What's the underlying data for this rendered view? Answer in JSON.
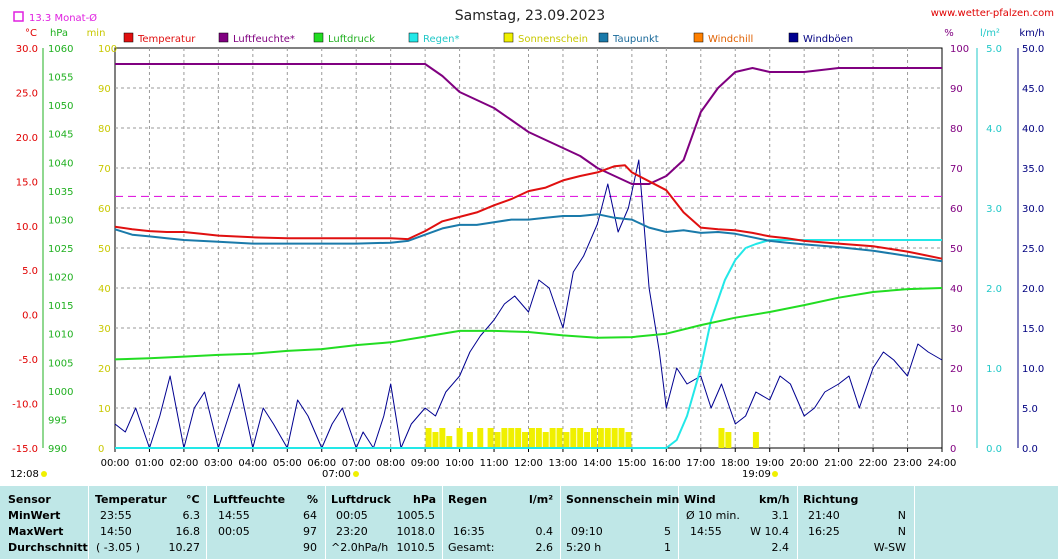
{
  "header": {
    "title": "Samstag, 23.09.2023",
    "site": "www.wetter-pfalzen.com",
    "monthly_avg_label": "13.3 Monat-Ø",
    "sunrise_time": "07:00",
    "sunset_time": "19:09",
    "start_time": "12:08"
  },
  "colors": {
    "temperature": "#e01010",
    "humidity": "#800080",
    "pressure": "#22dd22",
    "rain": "#22e8e8",
    "sunshine": "#f0f000",
    "dewpoint": "#1a7aaa",
    "windchill": "#ff8000",
    "gust": "#000090",
    "monthly_avg": "#e020e0"
  },
  "stats": {
    "headers": {
      "sensor": "Sensor",
      "temp": "Temperatur",
      "temp_unit": "°C",
      "hum": "Luftfeuchte",
      "hum_unit": "%",
      "pres": "Luftdruck",
      "pres_unit": "hPa",
      "rain": "Regen",
      "rain_unit": "l/m²",
      "sun": "Sonnenschein min",
      "wind": "Wind",
      "wind_unit": "km/h",
      "dir": "Richtung"
    },
    "rows": [
      {
        "label": "MinWert",
        "temp_time": "23:55",
        "temp_val": "6.3",
        "hum_time": "14:55",
        "hum_val": "64",
        "pres_time": "00:05",
        "pres_val": "1005.5",
        "rain_time": "",
        "rain_val": "",
        "sun_time": "",
        "sun_val": "",
        "wind_time": "Ø 10 min.",
        "wind_val": "3.1",
        "dir_time": "21:40",
        "dir_val": "N"
      },
      {
        "label": "MaxWert",
        "temp_time": "14:50",
        "temp_val": "16.8",
        "hum_time": "00:05",
        "hum_val": "97",
        "pres_time": "23:20",
        "pres_val": "1018.0",
        "rain_time": "16:35",
        "rain_val": "0.4",
        "sun_time": "09:10",
        "sun_val": "5",
        "wind_time": "14:55",
        "wind_val": "W 10.4",
        "dir_time": "16:25",
        "dir_val": "N"
      },
      {
        "label": "Durchschnitt",
        "temp_time": "( -3.05 )",
        "temp_val": "10.27",
        "hum_time": "",
        "hum_val": "90",
        "pres_time": "^2.0hPa/h",
        "pres_val": "1010.5",
        "rain_time": "Gesamt:",
        "rain_val": "2.6",
        "sun_time": "5:20 h",
        "sun_val": "1",
        "wind_time": "",
        "wind_val": "2.4",
        "dir_time": "",
        "dir_val": "W-SW"
      }
    ]
  },
  "chart_data": {
    "type": "line",
    "title": "Samstag, 23.09.2023",
    "x_ticks": [
      "00:00",
      "01:00",
      "02:00",
      "03:00",
      "04:00",
      "05:00",
      "06:00",
      "07:00",
      "08:00",
      "09:00",
      "10:00",
      "11:00",
      "12:00",
      "13:00",
      "14:00",
      "15:00",
      "16:00",
      "17:00",
      "18:00",
      "19:00",
      "20:00",
      "21:00",
      "22:00",
      "23:00",
      "24:00"
    ],
    "xlim": [
      0,
      24
    ],
    "axes": {
      "temp": {
        "unit": "°C",
        "range": [
          -15,
          30
        ],
        "ticks": [
          "30.0",
          "25.0",
          "20.0",
          "15.0",
          "10.0",
          "5.0",
          "0.0",
          "-5.0",
          "-10.0",
          "-15.0"
        ]
      },
      "pressure": {
        "unit": "hPa",
        "range": [
          990,
          1060
        ],
        "ticks": [
          "1060",
          "1055",
          "1050",
          "1045",
          "1040",
          "1035",
          "1030",
          "1025",
          "1020",
          "1015",
          "1010",
          "1005",
          "1000",
          "995",
          "990"
        ]
      },
      "minutes": {
        "unit": "min",
        "range": [
          0,
          100
        ],
        "ticks": [
          "100",
          "90",
          "80",
          "70",
          "60",
          "50",
          "40",
          "30",
          "20",
          "10",
          "0"
        ]
      },
      "humidity": {
        "unit": "%",
        "range": [
          0,
          100
        ],
        "ticks": [
          "100",
          "90",
          "80",
          "70",
          "60",
          "50",
          "40",
          "30",
          "20",
          "10",
          "0"
        ]
      },
      "rain": {
        "unit": "l/m²",
        "range": [
          0,
          5
        ],
        "ticks": [
          "5.0",
          "4.0",
          "3.0",
          "2.0",
          "1.0",
          "0.0"
        ]
      },
      "wind": {
        "unit": "km/h",
        "range": [
          0,
          50
        ],
        "ticks": [
          "50.0",
          "45.0",
          "40.0",
          "35.0",
          "30.0",
          "25.0",
          "20.0",
          "15.0",
          "10.0",
          "5.0",
          "0.0"
        ]
      }
    },
    "monthly_avg_temp": 13.3,
    "legend": [
      "Temperatur",
      "Luftfeuchte*",
      "Luftdruck",
      "Regen*",
      "Sonnenschein",
      "Taupunkt",
      "Windchill",
      "Windböen"
    ],
    "series": [
      {
        "name": "Temperatur",
        "axis": "temp",
        "x": [
          0,
          0.5,
          1,
          1.5,
          2,
          2.5,
          3,
          4,
          5,
          6,
          7,
          8,
          8.5,
          9,
          9.5,
          10,
          10.5,
          11,
          11.5,
          12,
          12.5,
          13,
          13.5,
          14,
          14.5,
          14.8,
          15,
          15.5,
          16,
          16.5,
          17,
          17.5,
          18,
          18.5,
          19,
          19.5,
          20,
          21,
          22,
          23,
          23.5,
          24
        ],
        "y": [
          9.9,
          9.6,
          9.4,
          9.3,
          9.3,
          9.1,
          8.9,
          8.7,
          8.6,
          8.6,
          8.6,
          8.6,
          8.5,
          9.4,
          10.5,
          11.0,
          11.5,
          12.3,
          13.0,
          13.9,
          14.3,
          15.1,
          15.6,
          16.0,
          16.7,
          16.8,
          16.0,
          15.0,
          14.0,
          11.5,
          9.8,
          9.6,
          9.5,
          9.2,
          8.8,
          8.6,
          8.3,
          8.0,
          7.7,
          7.1,
          6.7,
          6.3
        ]
      },
      {
        "name": "Luftfeuchte*",
        "axis": "humidity",
        "x": [
          0,
          1,
          2,
          3,
          4,
          5,
          6,
          7,
          8,
          9,
          9.5,
          10,
          10.5,
          11,
          11.5,
          12,
          12.5,
          13,
          13.5,
          14,
          14.5,
          15,
          15.5,
          16,
          16.5,
          17,
          17.5,
          18,
          18.5,
          19,
          20,
          21,
          22,
          23,
          24
        ],
        "y": [
          96,
          96,
          96,
          96,
          96,
          96,
          96,
          96,
          96,
          96,
          93,
          89,
          87,
          85,
          82,
          79,
          77,
          75,
          73,
          70,
          68,
          66,
          66,
          68,
          72,
          84,
          90,
          94,
          95,
          94,
          94,
          95,
          95,
          95,
          95
        ]
      },
      {
        "name": "Luftdruck",
        "axis": "pressure",
        "x": [
          0,
          1,
          2,
          3,
          4,
          5,
          6,
          7,
          8,
          9,
          10,
          11,
          12,
          13,
          14,
          15,
          16,
          17,
          18,
          19,
          20,
          21,
          22,
          23,
          24
        ],
        "y": [
          1005.5,
          1005.7,
          1006,
          1006.3,
          1006.5,
          1007,
          1007.3,
          1008,
          1008.5,
          1009.5,
          1010.5,
          1010.5,
          1010.3,
          1009.7,
          1009.3,
          1009.4,
          1010,
          1011.5,
          1012.8,
          1013.8,
          1015,
          1016.3,
          1017.3,
          1017.8,
          1018.0
        ]
      },
      {
        "name": "Regen*",
        "axis": "rain",
        "x": [
          0,
          16,
          16.3,
          16.6,
          17,
          17.3,
          17.7,
          18,
          18.3,
          18.6,
          19,
          19.5,
          20,
          24
        ],
        "y": [
          0,
          0,
          0.1,
          0.4,
          1.0,
          1.6,
          2.1,
          2.35,
          2.5,
          2.55,
          2.6,
          2.6,
          2.6,
          2.6
        ]
      },
      {
        "name": "Taupunkt",
        "axis": "temp",
        "x": [
          0,
          0.5,
          1,
          1.5,
          2,
          3,
          4,
          5,
          6,
          7,
          8,
          8.5,
          9,
          9.5,
          10,
          10.5,
          11,
          11.5,
          12,
          12.5,
          13,
          13.5,
          14,
          14.5,
          15,
          15.5,
          16,
          16.5,
          17,
          17.5,
          18,
          18.5,
          19,
          19.5,
          20,
          21,
          22,
          23,
          24
        ],
        "y": [
          9.6,
          9.0,
          8.8,
          8.6,
          8.4,
          8.2,
          8.0,
          8.0,
          8.0,
          8.0,
          8.1,
          8.3,
          9.0,
          9.7,
          10.1,
          10.1,
          10.4,
          10.7,
          10.7,
          10.9,
          11.1,
          11.1,
          11.3,
          10.9,
          10.7,
          9.8,
          9.3,
          9.5,
          9.2,
          9.3,
          9.1,
          8.7,
          8.3,
          8.1,
          7.9,
          7.6,
          7.2,
          6.6,
          6.0
        ]
      },
      {
        "name": "Windböen",
        "axis": "wind",
        "x": [
          0,
          0.3,
          0.6,
          1,
          1.3,
          1.6,
          2,
          2.3,
          2.6,
          3,
          3.3,
          3.6,
          4,
          4.3,
          4.6,
          5,
          5.3,
          5.6,
          6,
          6.3,
          6.6,
          7,
          7.2,
          7.5,
          7.8,
          8,
          8.3,
          8.6,
          9,
          9.3,
          9.6,
          10,
          10.3,
          10.6,
          11,
          11.3,
          11.6,
          12,
          12.3,
          12.6,
          13,
          13.3,
          13.6,
          14,
          14.3,
          14.6,
          14.9,
          15.2,
          15.5,
          15.8,
          16,
          16.3,
          16.6,
          17,
          17.3,
          17.6,
          18,
          18.3,
          18.6,
          19,
          19.3,
          19.6,
          20,
          20.3,
          20.6,
          21,
          21.3,
          21.6,
          22,
          22.3,
          22.6,
          23,
          23.3,
          23.6,
          24
        ],
        "y": [
          3,
          2,
          5,
          0,
          4,
          9,
          0,
          5,
          7,
          0,
          4,
          8,
          0,
          5,
          3,
          0,
          6,
          4,
          0,
          3,
          5,
          0,
          2,
          0,
          4,
          8,
          0,
          3,
          5,
          4,
          7,
          9,
          12,
          14,
          16,
          18,
          19,
          17,
          21,
          20,
          15,
          22,
          24,
          28,
          33,
          27,
          30,
          36,
          20,
          12,
          5,
          10,
          8,
          9,
          5,
          8,
          3,
          4,
          7,
          6,
          9,
          8,
          4,
          5,
          7,
          8,
          9,
          5,
          10,
          12,
          11,
          9,
          13,
          12,
          11
        ]
      },
      {
        "name": "Sonnenschein",
        "axis": "minutes",
        "x": [
          9.1,
          9.3,
          9.5,
          9.7,
          10,
          10.3,
          10.6,
          10.9,
          11.1,
          11.3,
          11.5,
          11.7,
          11.9,
          12.1,
          12.3,
          12.5,
          12.7,
          12.9,
          13.1,
          13.3,
          13.5,
          13.7,
          13.9,
          14.1,
          14.3,
          14.5,
          14.7,
          14.9,
          17.6,
          17.8,
          18.6
        ],
        "y": [
          5,
          4,
          5,
          3,
          5,
          4,
          5,
          5,
          4,
          5,
          5,
          5,
          4,
          5,
          5,
          4,
          5,
          5,
          4,
          5,
          5,
          4,
          5,
          5,
          5,
          5,
          5,
          4,
          5,
          4,
          4
        ]
      }
    ]
  }
}
